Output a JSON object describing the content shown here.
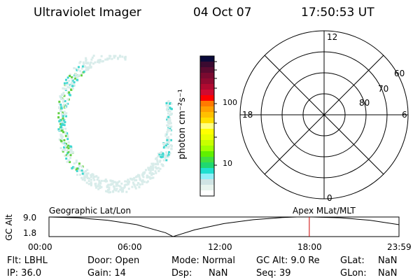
{
  "header": {
    "instrument": "Ultraviolet Imager",
    "date": "04 Oct 07",
    "time": "17:50:53 UT"
  },
  "colorbar": {
    "label": "photon cm⁻²s⁻¹",
    "ticks": [
      "100",
      "10"
    ],
    "colors": [
      "#0a0a3a",
      "#3a0a30",
      "#5a0a30",
      "#7a0a30",
      "#900a30",
      "#b00a30",
      "#d00a30",
      "#ff0000",
      "#ff7a00",
      "#ffa000",
      "#ffc000",
      "#ffe000",
      "#ffff80",
      "#ffff00",
      "#e8ff00",
      "#c8ff00",
      "#a0ff00",
      "#60f000",
      "#40e040",
      "#20d870",
      "#20e0d0",
      "#90f0f8",
      "#d0e4e4",
      "#e8f4ee",
      "#ffffff"
    ]
  },
  "polar": {
    "labels_mlt": [
      "12",
      "18",
      "6",
      "0"
    ],
    "labels_lat": [
      "60",
      "70",
      "80"
    ]
  },
  "altplot": {
    "ylabel": "GC Alt",
    "left_label": "Geographic Lat/Lon",
    "right_label": "Apex MLat/MLT",
    "marker_color": "#cc0000"
  },
  "chart_data": {
    "type": "line",
    "ylabel": "GC Alt",
    "yticks": [
      "9.0",
      "1.8"
    ],
    "ylim": [
      1.8,
      9.0
    ],
    "xticks": [
      "00:00",
      "06:00",
      "12:00",
      "18:00",
      "23:59"
    ],
    "x": [
      0,
      2,
      4,
      6,
      8,
      8.5,
      10,
      12,
      14,
      16,
      17,
      18,
      20,
      22,
      23.98
    ],
    "y": [
      9.0,
      8.7,
      7.8,
      6.2,
      3.2,
      1.8,
      4.3,
      6.6,
      8.0,
      8.8,
      9.0,
      9.0,
      8.7,
      7.8,
      6.2
    ],
    "marker_x": 17.85
  },
  "footer": {
    "rows": [
      [
        "Flt: LBHL",
        "Door: Open",
        "Mode: Normal",
        "GC Alt: 9.0 Re",
        "GLat:",
        "NaN"
      ],
      [
        "IP: 36.0",
        "Gain: 14",
        "Dsp:",
        "NaN",
        "Seq: 39",
        "GLon:",
        "NaN"
      ]
    ]
  }
}
